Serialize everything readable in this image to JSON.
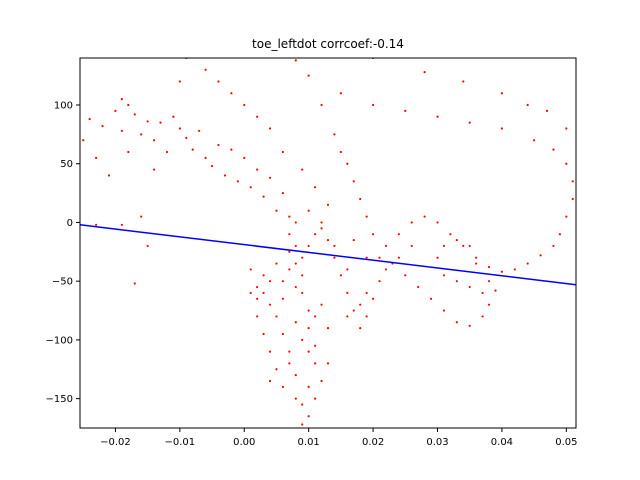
{
  "chart_data": {
    "type": "scatter",
    "title": "toe_leftdot corrcoef:-0.14",
    "xlabel": "",
    "ylabel": "",
    "xlim": [
      -0.0255,
      0.0515
    ],
    "ylim": [
      -175,
      140
    ],
    "xticks": [
      -0.02,
      -0.01,
      0.0,
      0.01,
      0.02,
      0.03,
      0.04,
      0.05
    ],
    "xtick_labels": [
      "−0.02",
      "−0.01",
      "0.00",
      "0.01",
      "0.02",
      "0.03",
      "0.04",
      "0.05"
    ],
    "yticks": [
      -150,
      -100,
      -50,
      0,
      50,
      100
    ],
    "ytick_labels": [
      "−150",
      "−100",
      "−50",
      "0",
      "50",
      "100"
    ],
    "grid": false,
    "legend": "none",
    "scatter_color": "#ff0000",
    "line_color": "#0000ff",
    "fit_line": {
      "x": [
        -0.0255,
        0.0515
      ],
      "y": [
        -2,
        -53
      ]
    },
    "points": [
      [
        -0.025,
        70
      ],
      [
        -0.024,
        88
      ],
      [
        -0.023,
        55
      ],
      [
        -0.022,
        82
      ],
      [
        -0.021,
        40
      ],
      [
        -0.02,
        95
      ],
      [
        -0.019,
        105
      ],
      [
        -0.019,
        78
      ],
      [
        -0.018,
        100
      ],
      [
        -0.018,
        60
      ],
      [
        -0.017,
        92
      ],
      [
        -0.016,
        75
      ],
      [
        -0.015,
        86
      ],
      [
        -0.014,
        70
      ],
      [
        -0.014,
        45
      ],
      [
        -0.013,
        85
      ],
      [
        -0.012,
        60
      ],
      [
        -0.011,
        90
      ],
      [
        -0.01,
        80
      ],
      [
        -0.01,
        120
      ],
      [
        -0.009,
        140
      ],
      [
        -0.009,
        72
      ],
      [
        -0.008,
        62
      ],
      [
        -0.007,
        78
      ],
      [
        -0.006,
        55
      ],
      [
        -0.005,
        48
      ],
      [
        -0.004,
        66
      ],
      [
        -0.003,
        40
      ],
      [
        -0.002,
        62
      ],
      [
        -0.001,
        35
      ],
      [
        0.0,
        55
      ],
      [
        0.001,
        30
      ],
      [
        0.002,
        45
      ],
      [
        0.003,
        22
      ],
      [
        0.004,
        38
      ],
      [
        0.005,
        10
      ],
      [
        0.006,
        25
      ],
      [
        0.007,
        5
      ],
      [
        0.007,
        -10
      ],
      [
        0.008,
        -20
      ],
      [
        0.008,
        -35
      ],
      [
        0.009,
        -45
      ],
      [
        0.009,
        -60
      ],
      [
        0.01,
        -75
      ],
      [
        0.01,
        -90
      ],
      [
        0.011,
        -105
      ],
      [
        0.011,
        -120
      ],
      [
        0.01,
        -140
      ],
      [
        0.009,
        -155
      ],
      [
        0.01,
        -165
      ],
      [
        0.009,
        -172
      ],
      [
        0.008,
        -130
      ],
      [
        0.007,
        -110
      ],
      [
        0.006,
        -95
      ],
      [
        0.005,
        -80
      ],
      [
        0.004,
        -70
      ],
      [
        0.003,
        -60
      ],
      [
        0.002,
        -55
      ],
      [
        0.001,
        -60
      ],
      [
        0.002,
        -80
      ],
      [
        0.003,
        -95
      ],
      [
        0.004,
        -110
      ],
      [
        0.005,
        -125
      ],
      [
        0.004,
        -135
      ],
      [
        0.006,
        -50
      ],
      [
        0.007,
        -40
      ],
      [
        0.008,
        -55
      ],
      [
        0.009,
        -30
      ],
      [
        0.01,
        -20
      ],
      [
        0.011,
        -10
      ],
      [
        0.012,
        0
      ],
      [
        0.013,
        -15
      ],
      [
        0.014,
        -30
      ],
      [
        0.015,
        -45
      ],
      [
        0.016,
        -60
      ],
      [
        0.017,
        -75
      ],
      [
        0.018,
        -90
      ],
      [
        0.019,
        -80
      ],
      [
        0.02,
        -65
      ],
      [
        0.021,
        -50
      ],
      [
        0.021,
        -30
      ],
      [
        0.02,
        -10
      ],
      [
        0.019,
        5
      ],
      [
        0.018,
        20
      ],
      [
        0.017,
        35
      ],
      [
        0.016,
        50
      ],
      [
        0.015,
        60
      ],
      [
        0.014,
        75
      ],
      [
        0.012,
        100
      ],
      [
        0.01,
        125
      ],
      [
        0.008,
        138
      ],
      [
        0.015,
        110
      ],
      [
        0.02,
        100
      ],
      [
        0.025,
        95
      ],
      [
        0.03,
        90
      ],
      [
        0.035,
        85
      ],
      [
        0.04,
        80
      ],
      [
        0.045,
        70
      ],
      [
        0.048,
        62
      ],
      [
        0.05,
        50
      ],
      [
        0.051,
        35
      ],
      [
        0.051,
        20
      ],
      [
        0.05,
        5
      ],
      [
        0.049,
        -10
      ],
      [
        0.048,
        -20
      ],
      [
        0.046,
        -28
      ],
      [
        0.044,
        -35
      ],
      [
        0.042,
        -40
      ],
      [
        0.04,
        -42
      ],
      [
        0.038,
        -38
      ],
      [
        0.036,
        -30
      ],
      [
        0.034,
        -20
      ],
      [
        0.032,
        -10
      ],
      [
        0.03,
        0
      ],
      [
        0.028,
        5
      ],
      [
        0.026,
        0
      ],
      [
        0.024,
        -10
      ],
      [
        0.022,
        -20
      ],
      [
        0.023,
        -35
      ],
      [
        0.025,
        -45
      ],
      [
        0.027,
        -55
      ],
      [
        0.029,
        -65
      ],
      [
        0.031,
        -75
      ],
      [
        0.033,
        -85
      ],
      [
        0.035,
        -88
      ],
      [
        0.037,
        -80
      ],
      [
        0.038,
        -70
      ],
      [
        0.037,
        -60
      ],
      [
        0.035,
        -55
      ],
      [
        0.033,
        -50
      ],
      [
        0.031,
        -45
      ],
      [
        0.03,
        -30
      ],
      [
        0.031,
        -20
      ],
      [
        0.033,
        -15
      ],
      [
        0.035,
        -20
      ],
      [
        0.036,
        -35
      ],
      [
        0.038,
        -50
      ],
      [
        0.039,
        -58
      ],
      [
        0.026,
        -20
      ],
      [
        0.024,
        -30
      ],
      [
        0.022,
        -40
      ],
      [
        0.019,
        -30
      ],
      [
        0.017,
        -15
      ],
      [
        0.013,
        15
      ],
      [
        0.011,
        30
      ],
      [
        0.009,
        45
      ],
      [
        0.006,
        60
      ],
      [
        0.004,
        80
      ],
      [
        0.002,
        90
      ],
      [
        0.0,
        100
      ],
      [
        -0.002,
        110
      ],
      [
        -0.004,
        120
      ],
      [
        -0.006,
        130
      ],
      [
        0.02,
        140
      ],
      [
        0.028,
        128
      ],
      [
        0.034,
        120
      ],
      [
        0.04,
        110
      ],
      [
        0.044,
        100
      ],
      [
        0.047,
        95
      ],
      [
        0.05,
        80
      ],
      [
        -0.017,
        -52
      ],
      [
        -0.015,
        -20
      ],
      [
        -0.016,
        5
      ],
      [
        -0.019,
        -2
      ],
      [
        -0.023,
        -2
      ],
      [
        0.001,
        -40
      ],
      [
        0.003,
        -45
      ],
      [
        0.006,
        -65
      ],
      [
        0.008,
        -85
      ],
      [
        0.012,
        -70
      ],
      [
        0.013,
        -90
      ],
      [
        0.011,
        -80
      ],
      [
        0.009,
        -100
      ],
      [
        0.007,
        -120
      ],
      [
        0.006,
        -140
      ],
      [
        0.008,
        -150
      ],
      [
        0.011,
        -150
      ],
      [
        0.012,
        -135
      ],
      [
        0.013,
        -120
      ],
      [
        0.01,
        -110
      ],
      [
        0.016,
        -80
      ],
      [
        0.018,
        -70
      ],
      [
        0.019,
        -60
      ],
      [
        0.016,
        -40
      ],
      [
        0.014,
        -20
      ],
      [
        0.012,
        -5
      ],
      [
        0.01,
        10
      ],
      [
        0.008,
        0
      ],
      [
        0.007,
        -25
      ],
      [
        0.005,
        -35
      ],
      [
        0.004,
        -50
      ],
      [
        0.002,
        -65
      ]
    ]
  }
}
